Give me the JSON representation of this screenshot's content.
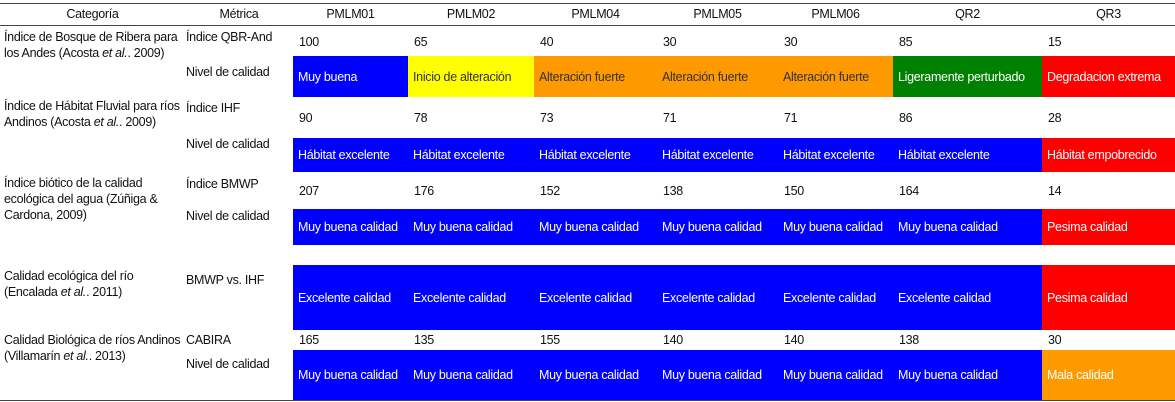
{
  "header": [
    "Categoría",
    "Métrica",
    "PMLM01",
    "PMLM02",
    "PMLM04",
    "PMLM05",
    "PMLM06",
    "QR2",
    "QR3"
  ],
  "groups": [
    {
      "category": [
        "Índice de Bosque de Ribera para los Andes (Acosta ",
        "et al.",
        ". 2009)"
      ],
      "rows": [
        {
          "metric": "Índice QBR-And",
          "values": [
            "100",
            "65",
            "40",
            "30",
            "30",
            "85",
            "15"
          ]
        },
        {
          "metric": "Nivel de calidad",
          "cells": [
            {
              "text": "Muy buena",
              "color": "#0000ff"
            },
            {
              "text": "Inicio de alteración",
              "color": "#ffff00"
            },
            {
              "text": "Alteración fuerte",
              "color": "#ff9900"
            },
            {
              "text": "Alteración fuerte",
              "color": "#ff9900"
            },
            {
              "text": "Alteración fuerte",
              "color": "#ff9900"
            },
            {
              "text": "Ligeramente perturbado",
              "color": "#008000"
            },
            {
              "text": "Degradacion extrema",
              "color": "#ff0000"
            }
          ]
        }
      ]
    },
    {
      "category": [
        "Índice de Hábitat Fluvial para ríos Andinos (Acosta ",
        "et al.",
        ". 2009)"
      ],
      "rows": [
        {
          "metric": "Índice IHF",
          "values": [
            "90",
            "78",
            "73",
            "71",
            "71",
            "86",
            "28"
          ]
        },
        {
          "metric": "Nivel de calidad",
          "cells": [
            {
              "text": "Hábitat excelente",
              "color": "#0000ff"
            },
            {
              "text": "Hábitat excelente",
              "color": "#0000ff"
            },
            {
              "text": "Hábitat excelente",
              "color": "#0000ff"
            },
            {
              "text": "Hábitat excelente",
              "color": "#0000ff"
            },
            {
              "text": "Hábitat excelente",
              "color": "#0000ff"
            },
            {
              "text": "Hábitat excelente",
              "color": "#0000ff"
            },
            {
              "text": "Hábitat empobrecido",
              "color": "#ff0000"
            }
          ]
        }
      ]
    },
    {
      "category": [
        "Índice biótico de la calidad ecológica del agua (Zúñiga & Cardona, 2009)"
      ],
      "rows": [
        {
          "metric": "Índice BMWP",
          "values": [
            "207",
            "176",
            "152",
            "138",
            "150",
            "164",
            "14"
          ]
        },
        {
          "metric": "Nivel de calidad",
          "cells": [
            {
              "text": "Muy buena calidad",
              "color": "#0000ff"
            },
            {
              "text": "Muy buena calidad",
              "color": "#0000ff"
            },
            {
              "text": "Muy buena calidad",
              "color": "#0000ff"
            },
            {
              "text": "Muy buena calidad",
              "color": "#0000ff"
            },
            {
              "text": "Muy buena calidad",
              "color": "#0000ff"
            },
            {
              "text": "Muy buena calidad",
              "color": "#0000ff"
            },
            {
              "text": "Pesima calidad",
              "color": "#ff0000"
            }
          ]
        }
      ]
    },
    {
      "category": [
        "Calidad ecológica del río (Encalada ",
        "et al.",
        ". 2011)"
      ],
      "rows": [
        {
          "metric": "BMWP vs. IHF",
          "cells": [
            {
              "text": "Excelente calidad",
              "color": "#0000ff"
            },
            {
              "text": "Excelente calidad",
              "color": "#0000ff"
            },
            {
              "text": "Excelente calidad",
              "color": "#0000ff"
            },
            {
              "text": "Excelente calidad",
              "color": "#0000ff"
            },
            {
              "text": "Excelente calidad",
              "color": "#0000ff"
            },
            {
              "text": "Excelente calidad",
              "color": "#0000ff"
            },
            {
              "text": "Pesima calidad",
              "color": "#ff0000"
            }
          ]
        }
      ]
    },
    {
      "category": [
        "Calidad Biológica de ríos Andinos (Villamarín ",
        "et al.",
        ". 2013)"
      ],
      "rows": [
        {
          "metric": "CABIRA",
          "values": [
            "165",
            "135",
            "155",
            "140",
            "140",
            "138",
            "30"
          ]
        },
        {
          "metric": "Nivel de calidad",
          "cells": [
            {
              "text": "Muy buena calidad",
              "color": "#0000ff"
            },
            {
              "text": "Muy buena calidad",
              "color": "#0000ff"
            },
            {
              "text": "Muy buena calidad",
              "color": "#0000ff"
            },
            {
              "text": "Muy buena calidad",
              "color": "#0000ff"
            },
            {
              "text": "Muy buena calidad",
              "color": "#0000ff"
            },
            {
              "text": "Muy buena calidad",
              "color": "#0000ff"
            },
            {
              "text": "Mala calidad",
              "color": "#ff9900"
            }
          ]
        }
      ]
    }
  ]
}
